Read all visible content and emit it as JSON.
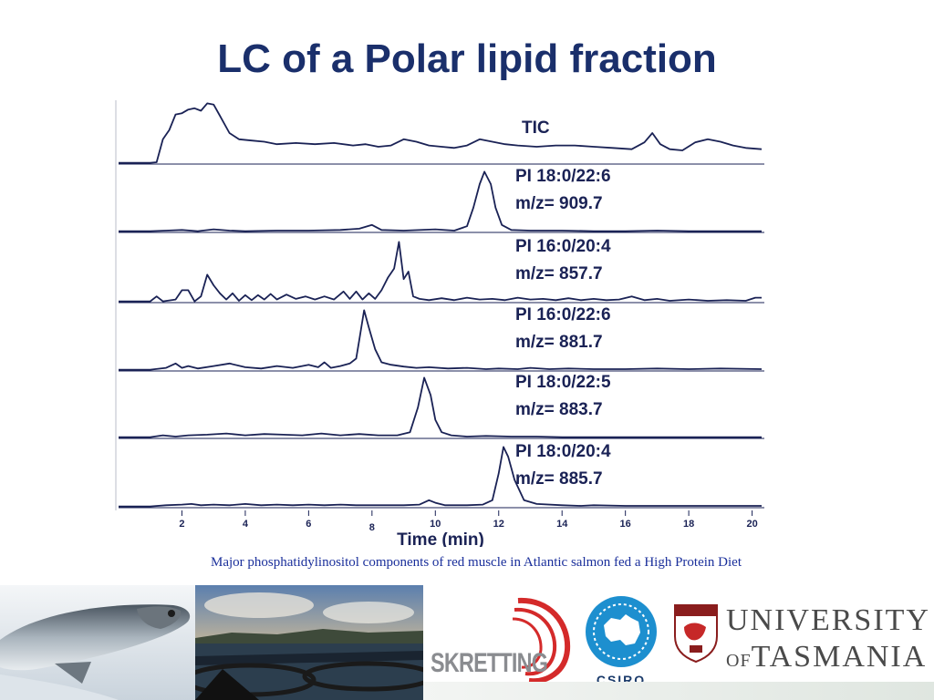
{
  "slide": {
    "title": "LC of a Polar lipid fraction",
    "caption": "Major phosphatidylinositol components of red muscle in Atlantic salmon fed a High Protein Diet"
  },
  "logos": {
    "skretting": "SKRETTING",
    "csiro": "CSIRO",
    "utas_line1": "UNIVERSITY",
    "utas_of": "OF",
    "utas_line2": "TASMANIA"
  },
  "colors": {
    "title": "#1a2f6b",
    "trace": "#1a2255",
    "caption": "#1a2f9b",
    "skretting_red": "#d42a2a",
    "csiro_blue": "#1d8fcf"
  },
  "chart_data": {
    "type": "line",
    "xlabel": "Time (min)",
    "xlim": [
      0,
      20.3
    ],
    "x_ticks": [
      2,
      4,
      6,
      8,
      10,
      12,
      14,
      16,
      18,
      20
    ],
    "grid": false,
    "panels": [
      {
        "label_lines": [
          "TIC"
        ],
        "points": [
          [
            0,
            0.02
          ],
          [
            1,
            0.02
          ],
          [
            1.2,
            0.03
          ],
          [
            1.4,
            0.4
          ],
          [
            1.6,
            0.55
          ],
          [
            1.8,
            0.8
          ],
          [
            2.0,
            0.82
          ],
          [
            2.2,
            0.88
          ],
          [
            2.4,
            0.9
          ],
          [
            2.6,
            0.86
          ],
          [
            2.8,
            0.98
          ],
          [
            3.0,
            0.96
          ],
          [
            3.2,
            0.78
          ],
          [
            3.5,
            0.5
          ],
          [
            3.8,
            0.4
          ],
          [
            4.2,
            0.38
          ],
          [
            4.6,
            0.36
          ],
          [
            5.0,
            0.32
          ],
          [
            5.6,
            0.34
          ],
          [
            6.2,
            0.32
          ],
          [
            6.8,
            0.34
          ],
          [
            7.4,
            0.3
          ],
          [
            7.8,
            0.32
          ],
          [
            8.2,
            0.28
          ],
          [
            8.6,
            0.3
          ],
          [
            9.0,
            0.4
          ],
          [
            9.4,
            0.36
          ],
          [
            9.8,
            0.3
          ],
          [
            10.2,
            0.28
          ],
          [
            10.6,
            0.26
          ],
          [
            11.0,
            0.3
          ],
          [
            11.4,
            0.4
          ],
          [
            11.8,
            0.36
          ],
          [
            12.2,
            0.32
          ],
          [
            12.6,
            0.3
          ],
          [
            13.2,
            0.28
          ],
          [
            13.8,
            0.3
          ],
          [
            14.4,
            0.3
          ],
          [
            15.0,
            0.28
          ],
          [
            15.6,
            0.26
          ],
          [
            16.2,
            0.24
          ],
          [
            16.6,
            0.35
          ],
          [
            16.85,
            0.5
          ],
          [
            17.1,
            0.32
          ],
          [
            17.4,
            0.24
          ],
          [
            17.8,
            0.22
          ],
          [
            18.2,
            0.35
          ],
          [
            18.6,
            0.4
          ],
          [
            19.0,
            0.36
          ],
          [
            19.4,
            0.3
          ],
          [
            19.8,
            0.26
          ],
          [
            20.3,
            0.24
          ]
        ]
      },
      {
        "label_lines": [
          "PI 18:0/22:6",
          "m/z= 909.7"
        ],
        "points": [
          [
            0,
            0.02
          ],
          [
            1.0,
            0.02
          ],
          [
            1.5,
            0.03
          ],
          [
            2.0,
            0.04
          ],
          [
            2.5,
            0.02
          ],
          [
            3.0,
            0.05
          ],
          [
            3.5,
            0.03
          ],
          [
            4.0,
            0.02
          ],
          [
            5.0,
            0.03
          ],
          [
            6.0,
            0.03
          ],
          [
            7.0,
            0.04
          ],
          [
            7.6,
            0.06
          ],
          [
            8.0,
            0.12
          ],
          [
            8.3,
            0.04
          ],
          [
            9.0,
            0.03
          ],
          [
            10.0,
            0.05
          ],
          [
            10.6,
            0.03
          ],
          [
            11.0,
            0.1
          ],
          [
            11.2,
            0.4
          ],
          [
            11.4,
            0.78
          ],
          [
            11.55,
            0.98
          ],
          [
            11.75,
            0.78
          ],
          [
            11.9,
            0.4
          ],
          [
            12.1,
            0.12
          ],
          [
            12.4,
            0.04
          ],
          [
            13.0,
            0.03
          ],
          [
            14.0,
            0.03
          ],
          [
            15.0,
            0.02
          ],
          [
            16.0,
            0.02
          ],
          [
            17.0,
            0.03
          ],
          [
            18.0,
            0.02
          ],
          [
            19.0,
            0.02
          ],
          [
            20.3,
            0.02
          ]
        ]
      },
      {
        "label_lines": [
          "PI 16:0/20:4",
          "m/z= 857.7"
        ],
        "points": [
          [
            0,
            0.02
          ],
          [
            1.0,
            0.02
          ],
          [
            1.2,
            0.1
          ],
          [
            1.4,
            0.02
          ],
          [
            1.8,
            0.05
          ],
          [
            2.0,
            0.2
          ],
          [
            2.2,
            0.2
          ],
          [
            2.4,
            0.02
          ],
          [
            2.6,
            0.1
          ],
          [
            2.8,
            0.45
          ],
          [
            3.0,
            0.28
          ],
          [
            3.2,
            0.15
          ],
          [
            3.4,
            0.05
          ],
          [
            3.6,
            0.15
          ],
          [
            3.8,
            0.03
          ],
          [
            4.0,
            0.12
          ],
          [
            4.2,
            0.04
          ],
          [
            4.4,
            0.12
          ],
          [
            4.6,
            0.05
          ],
          [
            4.8,
            0.14
          ],
          [
            5.0,
            0.05
          ],
          [
            5.3,
            0.13
          ],
          [
            5.6,
            0.06
          ],
          [
            5.9,
            0.1
          ],
          [
            6.2,
            0.05
          ],
          [
            6.5,
            0.1
          ],
          [
            6.8,
            0.05
          ],
          [
            7.1,
            0.18
          ],
          [
            7.3,
            0.06
          ],
          [
            7.5,
            0.18
          ],
          [
            7.7,
            0.05
          ],
          [
            7.9,
            0.15
          ],
          [
            8.1,
            0.06
          ],
          [
            8.3,
            0.2
          ],
          [
            8.5,
            0.4
          ],
          [
            8.7,
            0.55
          ],
          [
            8.85,
            0.98
          ],
          [
            9.0,
            0.38
          ],
          [
            9.15,
            0.5
          ],
          [
            9.3,
            0.1
          ],
          [
            9.5,
            0.06
          ],
          [
            9.8,
            0.04
          ],
          [
            10.2,
            0.07
          ],
          [
            10.6,
            0.04
          ],
          [
            11.0,
            0.08
          ],
          [
            11.4,
            0.05
          ],
          [
            11.8,
            0.06
          ],
          [
            12.2,
            0.04
          ],
          [
            12.6,
            0.08
          ],
          [
            13.0,
            0.05
          ],
          [
            13.4,
            0.06
          ],
          [
            13.8,
            0.04
          ],
          [
            14.2,
            0.07
          ],
          [
            14.6,
            0.04
          ],
          [
            15.0,
            0.06
          ],
          [
            15.4,
            0.04
          ],
          [
            15.8,
            0.05
          ],
          [
            16.2,
            0.1
          ],
          [
            16.6,
            0.04
          ],
          [
            17.0,
            0.06
          ],
          [
            17.4,
            0.03
          ],
          [
            18.0,
            0.05
          ],
          [
            18.6,
            0.03
          ],
          [
            19.2,
            0.04
          ],
          [
            19.8,
            0.03
          ],
          [
            20.1,
            0.08
          ],
          [
            20.3,
            0.08
          ]
        ]
      },
      {
        "label_lines": [
          "PI 16:0/22:6",
          "m/z= 881.7"
        ],
        "points": [
          [
            0,
            0.02
          ],
          [
            1.0,
            0.02
          ],
          [
            1.5,
            0.05
          ],
          [
            1.8,
            0.12
          ],
          [
            2.0,
            0.05
          ],
          [
            2.2,
            0.08
          ],
          [
            2.5,
            0.04
          ],
          [
            3.0,
            0.08
          ],
          [
            3.5,
            0.12
          ],
          [
            4.0,
            0.06
          ],
          [
            4.5,
            0.04
          ],
          [
            5.0,
            0.08
          ],
          [
            5.5,
            0.05
          ],
          [
            6.0,
            0.1
          ],
          [
            6.3,
            0.06
          ],
          [
            6.5,
            0.14
          ],
          [
            6.7,
            0.05
          ],
          [
            7.0,
            0.08
          ],
          [
            7.3,
            0.12
          ],
          [
            7.5,
            0.2
          ],
          [
            7.6,
            0.5
          ],
          [
            7.75,
            0.98
          ],
          [
            7.9,
            0.7
          ],
          [
            8.1,
            0.35
          ],
          [
            8.3,
            0.14
          ],
          [
            8.6,
            0.1
          ],
          [
            9.0,
            0.07
          ],
          [
            9.4,
            0.05
          ],
          [
            9.8,
            0.06
          ],
          [
            10.4,
            0.04
          ],
          [
            11.0,
            0.05
          ],
          [
            11.6,
            0.03
          ],
          [
            12.0,
            0.04
          ],
          [
            12.6,
            0.03
          ],
          [
            13.0,
            0.05
          ],
          [
            13.6,
            0.03
          ],
          [
            14.2,
            0.04
          ],
          [
            15.0,
            0.03
          ],
          [
            16.0,
            0.03
          ],
          [
            17.0,
            0.04
          ],
          [
            18.0,
            0.03
          ],
          [
            19.0,
            0.04
          ],
          [
            20.3,
            0.03
          ]
        ]
      },
      {
        "label_lines": [
          "PI 18:0/22:5",
          "m/z= 883.7"
        ],
        "points": [
          [
            0,
            0.02
          ],
          [
            1.0,
            0.02
          ],
          [
            1.4,
            0.05
          ],
          [
            1.8,
            0.03
          ],
          [
            2.2,
            0.05
          ],
          [
            2.8,
            0.06
          ],
          [
            3.4,
            0.08
          ],
          [
            4.0,
            0.05
          ],
          [
            4.6,
            0.07
          ],
          [
            5.2,
            0.06
          ],
          [
            5.8,
            0.05
          ],
          [
            6.4,
            0.08
          ],
          [
            7.0,
            0.05
          ],
          [
            7.6,
            0.07
          ],
          [
            8.2,
            0.05
          ],
          [
            8.8,
            0.05
          ],
          [
            9.2,
            0.1
          ],
          [
            9.45,
            0.5
          ],
          [
            9.65,
            0.98
          ],
          [
            9.85,
            0.7
          ],
          [
            10.0,
            0.3
          ],
          [
            10.2,
            0.1
          ],
          [
            10.5,
            0.05
          ],
          [
            11.0,
            0.03
          ],
          [
            11.6,
            0.04
          ],
          [
            12.4,
            0.03
          ],
          [
            13.2,
            0.03
          ],
          [
            14.0,
            0.02
          ],
          [
            15.0,
            0.02
          ],
          [
            16.0,
            0.02
          ],
          [
            17.0,
            0.02
          ],
          [
            18.0,
            0.02
          ],
          [
            19.0,
            0.02
          ],
          [
            20.3,
            0.02
          ]
        ]
      },
      {
        "label_lines": [
          "PI 18:0/20:4",
          "m/z= 885.7"
        ],
        "points": [
          [
            0,
            0.02
          ],
          [
            1.0,
            0.02
          ],
          [
            1.5,
            0.04
          ],
          [
            2.0,
            0.05
          ],
          [
            2.3,
            0.06
          ],
          [
            2.6,
            0.04
          ],
          [
            3.0,
            0.05
          ],
          [
            3.5,
            0.04
          ],
          [
            4.0,
            0.06
          ],
          [
            4.5,
            0.04
          ],
          [
            5.0,
            0.05
          ],
          [
            5.5,
            0.04
          ],
          [
            6.0,
            0.05
          ],
          [
            6.5,
            0.04
          ],
          [
            7.0,
            0.05
          ],
          [
            7.5,
            0.04
          ],
          [
            8.0,
            0.04
          ],
          [
            8.5,
            0.04
          ],
          [
            9.0,
            0.04
          ],
          [
            9.5,
            0.05
          ],
          [
            9.8,
            0.12
          ],
          [
            10.0,
            0.08
          ],
          [
            10.3,
            0.04
          ],
          [
            11.0,
            0.04
          ],
          [
            11.5,
            0.05
          ],
          [
            11.8,
            0.12
          ],
          [
            12.0,
            0.55
          ],
          [
            12.15,
            0.98
          ],
          [
            12.3,
            0.82
          ],
          [
            12.5,
            0.45
          ],
          [
            12.8,
            0.12
          ],
          [
            13.2,
            0.06
          ],
          [
            14.0,
            0.04
          ],
          [
            14.6,
            0.03
          ],
          [
            15.0,
            0.04
          ],
          [
            16.0,
            0.03
          ],
          [
            17.0,
            0.03
          ],
          [
            18.0,
            0.03
          ],
          [
            19.0,
            0.03
          ],
          [
            20.3,
            0.03
          ]
        ]
      }
    ]
  }
}
